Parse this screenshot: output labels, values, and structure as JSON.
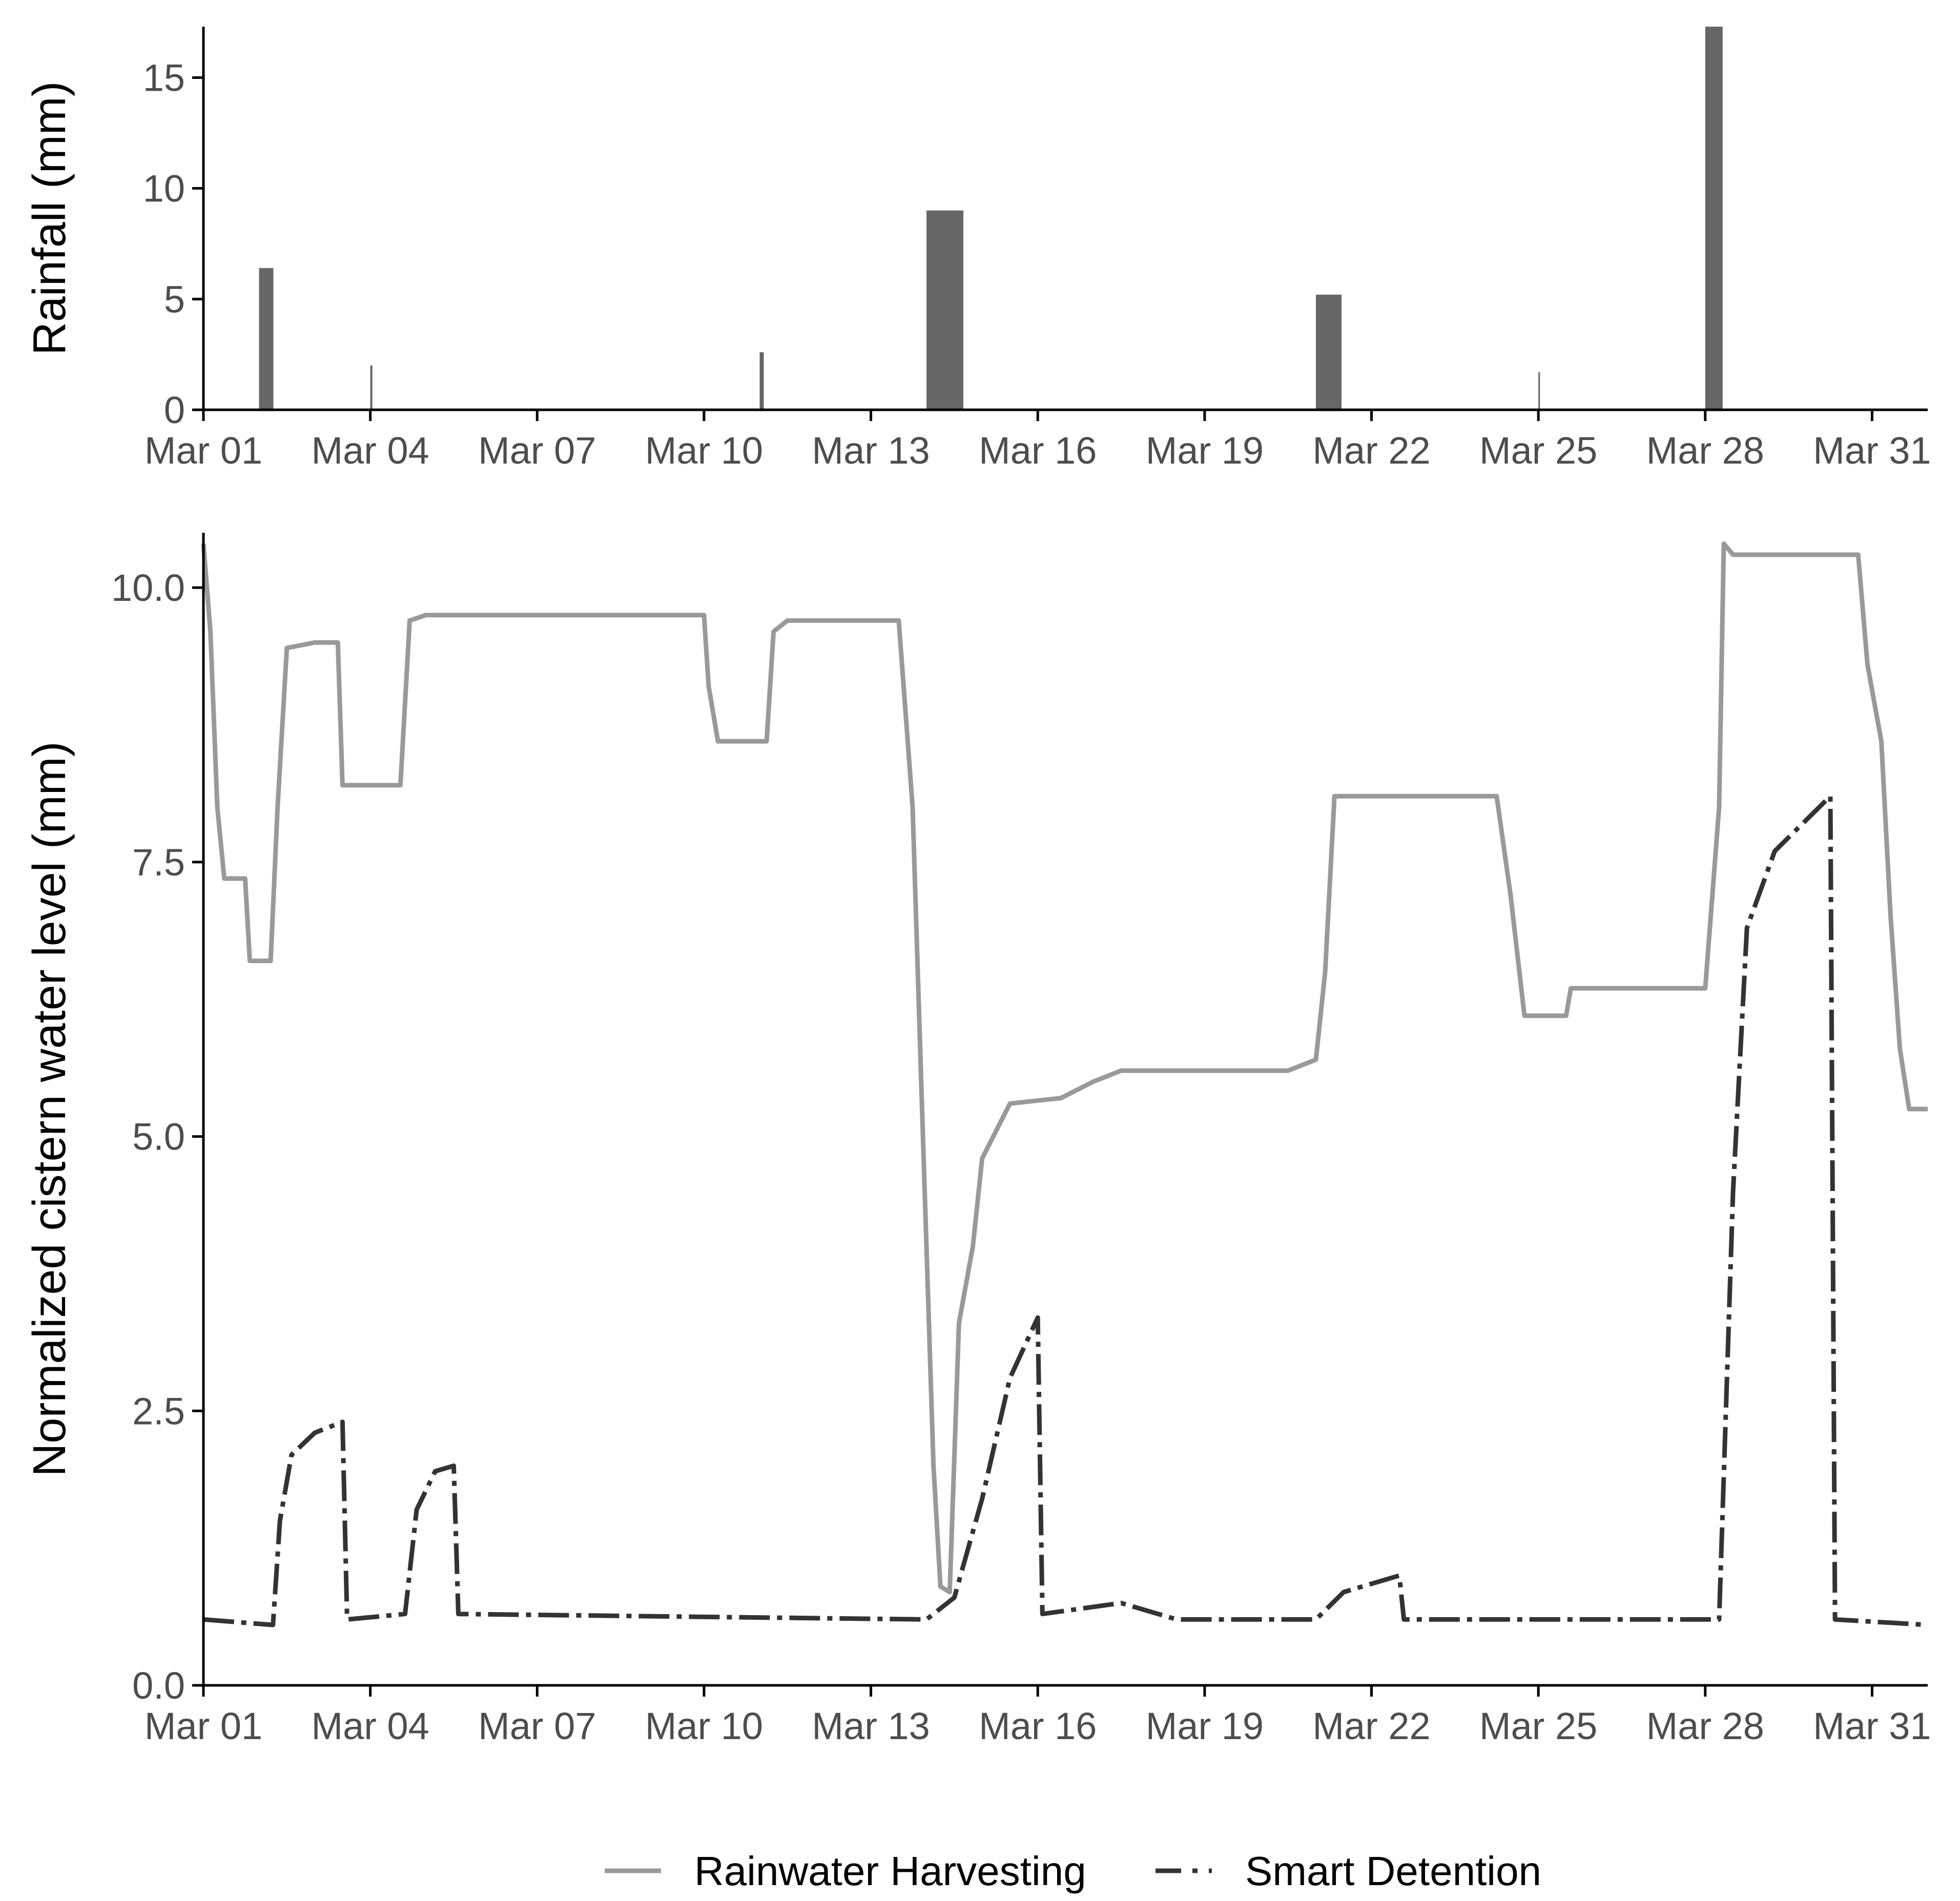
{
  "colors": {
    "rain_bar": "#666666",
    "rainwater_harvesting": "#999999",
    "smart_detention": "#333333",
    "axis": "#000000",
    "tick_label": "#4d4d4d"
  },
  "legend": {
    "position": "bottom",
    "items": [
      {
        "label": "Rainwater Harvesting",
        "line": "solid"
      },
      {
        "label": "Smart Detention",
        "line": "dashed"
      }
    ]
  },
  "chart_data": [
    {
      "type": "bar",
      "ylabel": "Rainfall (mm)",
      "xlabel": "",
      "x_axis": "date",
      "xlim": [
        "2019-03-01",
        "2019-04-01"
      ],
      "x_ticks": [
        "Mar 01",
        "Mar 04",
        "Mar 07",
        "Mar 10",
        "Mar 13",
        "Mar 16",
        "Mar 19",
        "Mar 22",
        "Mar 25",
        "Mar 28",
        "Mar 31"
      ],
      "ylim": [
        0,
        17.3
      ],
      "y_ticks": [
        "0",
        "5",
        "10",
        "15"
      ],
      "grid": false,
      "bars": [
        {
          "date": "2019-03-02",
          "value": 6.4
        },
        {
          "date": "2019-03-04",
          "value": 2.0
        },
        {
          "date": "2019-03-11",
          "value": 2.6
        },
        {
          "date": "2019-03-14",
          "value": 9.0
        },
        {
          "date": "2019-03-21",
          "value": 5.2
        },
        {
          "date": "2019-03-25",
          "value": 1.7
        },
        {
          "date": "2019-03-28",
          "value": 17.3
        }
      ]
    },
    {
      "type": "line",
      "ylabel": "Normalized cistern water level (mm)",
      "xlabel": "",
      "x_axis": "date",
      "xlim": [
        "2019-03-01",
        "2019-04-01"
      ],
      "x_ticks": [
        "Mar 01",
        "Mar 04",
        "Mar 07",
        "Mar 10",
        "Mar 13",
        "Mar 16",
        "Mar 19",
        "Mar 22",
        "Mar 25",
        "Mar 28",
        "Mar 31"
      ],
      "ylim": [
        0,
        10.5
      ],
      "y_ticks": [
        "0.0",
        "2.5",
        "5.0",
        "7.5",
        "10.0"
      ],
      "grid": false,
      "series": [
        {
          "name": "Rainwater Harvesting",
          "points": [
            [
              "2019-03-01 00:00",
              10.4
            ],
            [
              "2019-03-01 03:00",
              9.6
            ],
            [
              "2019-03-01 06:00",
              8.0
            ],
            [
              "2019-03-01 09:00",
              7.35
            ],
            [
              "2019-03-01 18:00",
              7.35
            ],
            [
              "2019-03-01 20:00",
              6.6
            ],
            [
              "2019-03-02 05:00",
              6.6
            ],
            [
              "2019-03-02 08:00",
              8.0
            ],
            [
              "2019-03-02 12:00",
              9.45
            ],
            [
              "2019-03-03 00:00",
              9.5
            ],
            [
              "2019-03-03 10:00",
              9.5
            ],
            [
              "2019-03-03 12:00",
              8.2
            ],
            [
              "2019-03-04 13:00",
              8.2
            ],
            [
              "2019-03-04 17:00",
              9.7
            ],
            [
              "2019-03-05 00:00",
              9.75
            ],
            [
              "2019-03-10 00:00",
              9.75
            ],
            [
              "2019-03-10 02:00",
              9.1
            ],
            [
              "2019-03-10 06:00",
              8.6
            ],
            [
              "2019-03-11 03:00",
              8.6
            ],
            [
              "2019-03-11 06:00",
              9.6
            ],
            [
              "2019-03-11 12:00",
              9.7
            ],
            [
              "2019-03-13 12:00",
              9.7
            ],
            [
              "2019-03-13 18:00",
              8.0
            ],
            [
              "2019-03-13 22:00",
              5.3
            ],
            [
              "2019-03-14 03:00",
              2.0
            ],
            [
              "2019-03-14 06:00",
              0.9
            ],
            [
              "2019-03-14 10:00",
              0.85
            ],
            [
              "2019-03-14 14:00",
              3.3
            ],
            [
              "2019-03-14 20:00",
              4.0
            ],
            [
              "2019-03-15 00:00",
              4.8
            ],
            [
              "2019-03-15 12:00",
              5.3
            ],
            [
              "2019-03-16 10:00",
              5.35
            ],
            [
              "2019-03-17 00:00",
              5.5
            ],
            [
              "2019-03-17 12:00",
              5.6
            ],
            [
              "2019-03-20 12:00",
              5.6
            ],
            [
              "2019-03-21 00:00",
              5.7
            ],
            [
              "2019-03-21 04:00",
              6.5
            ],
            [
              "2019-03-21 08:00",
              8.1
            ],
            [
              "2019-03-24 06:00",
              8.1
            ],
            [
              "2019-03-24 12:00",
              7.2
            ],
            [
              "2019-03-24 18:00",
              6.1
            ],
            [
              "2019-03-25 12:00",
              6.1
            ],
            [
              "2019-03-25 14:00",
              6.35
            ],
            [
              "2019-03-28 00:00",
              6.35
            ],
            [
              "2019-03-28 06:00",
              8.0
            ],
            [
              "2019-03-28 08:00",
              10.4
            ],
            [
              "2019-03-28 12:00",
              10.3
            ],
            [
              "2019-03-30 18:00",
              10.3
            ],
            [
              "2019-03-30 22:00",
              9.3
            ],
            [
              "2019-03-31 04:00",
              8.6
            ],
            [
              "2019-03-31 08:00",
              7.0
            ],
            [
              "2019-03-31 12:00",
              5.8
            ],
            [
              "2019-03-31 16:00",
              5.25
            ],
            [
              "2019-04-01 00:00",
              5.25
            ]
          ]
        },
        {
          "name": "Smart Detention",
          "points": [
            [
              "2019-03-01 00:00",
              0.6
            ],
            [
              "2019-03-02 06:00",
              0.55
            ],
            [
              "2019-03-02 09:00",
              1.5
            ],
            [
              "2019-03-02 14:00",
              2.1
            ],
            [
              "2019-03-03 00:00",
              2.3
            ],
            [
              "2019-03-03 12:00",
              2.4
            ],
            [
              "2019-03-03 14:00",
              0.6
            ],
            [
              "2019-03-04 15:00",
              0.65
            ],
            [
              "2019-03-04 20:00",
              1.6
            ],
            [
              "2019-03-05 04:00",
              1.95
            ],
            [
              "2019-03-05 12:00",
              2.0
            ],
            [
              "2019-03-05 14:00",
              0.65
            ],
            [
              "2019-03-14 00:00",
              0.6
            ],
            [
              "2019-03-14 12:00",
              0.8
            ],
            [
              "2019-03-15 00:00",
              1.7
            ],
            [
              "2019-03-15 12:00",
              2.8
            ],
            [
              "2019-03-16 00:00",
              3.35
            ],
            [
              "2019-03-16 02:00",
              0.65
            ],
            [
              "2019-03-17 12:00",
              0.75
            ],
            [
              "2019-03-18 12:00",
              0.6
            ],
            [
              "2019-03-21 00:00",
              0.6
            ],
            [
              "2019-03-21 12:00",
              0.85
            ],
            [
              "2019-03-22 12:00",
              1.0
            ],
            [
              "2019-03-22 14:00",
              0.6
            ],
            [
              "2019-03-28 06:00",
              0.6
            ],
            [
              "2019-03-28 12:00",
              4.5
            ],
            [
              "2019-03-28 18:00",
              6.9
            ],
            [
              "2019-03-29 06:00",
              7.6
            ],
            [
              "2019-03-30 06:00",
              8.1
            ],
            [
              "2019-03-30 08:00",
              0.6
            ],
            [
              "2019-04-01 00:00",
              0.55
            ]
          ]
        }
      ]
    }
  ]
}
